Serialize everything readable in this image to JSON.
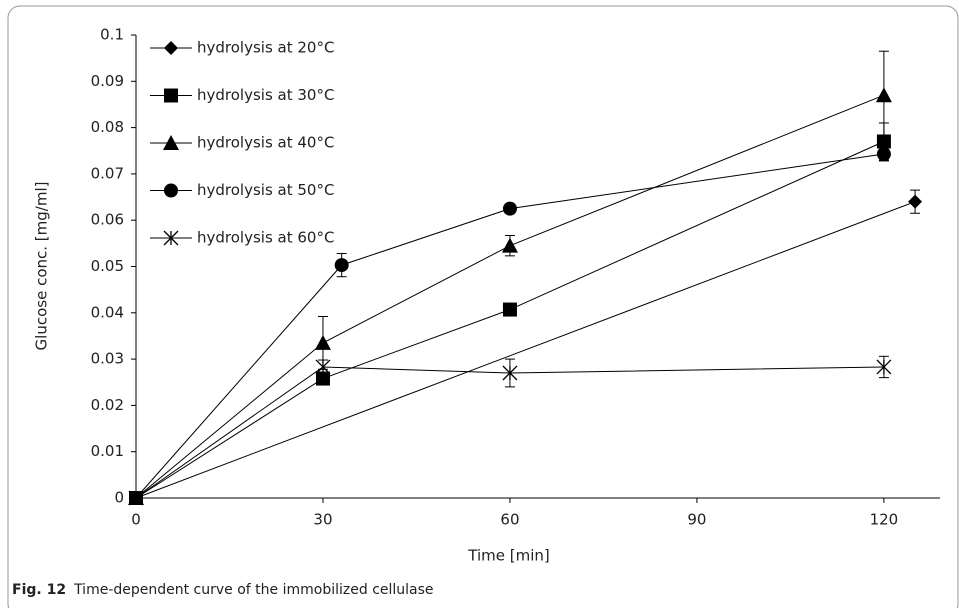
{
  "chart_data": {
    "type": "scatter-line",
    "x_label": "Time [min]",
    "y_label": "Glucose conc. [mg/ml]",
    "xlim": [
      0,
      129
    ],
    "ylim": [
      0,
      0.1
    ],
    "xticks": [
      0,
      30,
      60,
      90,
      120
    ],
    "yticks": [
      0,
      0.01,
      0.02,
      0.03,
      0.04,
      0.05,
      0.06,
      0.07,
      0.08,
      0.09,
      0.1
    ],
    "grid": false,
    "legend": "upper-left",
    "series": [
      {
        "name": "hydrolysis at 20°C",
        "color": "#000000",
        "marker": "diamond",
        "x": [
          0,
          125
        ],
        "values": [
          0,
          0.064
        ],
        "errors": [
          0,
          0.0025
        ]
      },
      {
        "name": "hydrolysis at 30°C",
        "color": "#000000",
        "marker": "square",
        "x": [
          0,
          30,
          60,
          120
        ],
        "values": [
          0,
          0.0258,
          0.0407,
          0.077
        ],
        "errors": [
          0,
          0,
          0,
          0.004
        ]
      },
      {
        "name": "hydrolysis at 40°C",
        "color": "#000000",
        "marker": "triangle",
        "x": [
          0,
          30,
          60,
          120
        ],
        "values": [
          0,
          0.0335,
          0.0545,
          0.087
        ],
        "errors": [
          0,
          0.0057,
          0.0022,
          0.0095
        ]
      },
      {
        "name": "hydrolysis at 50°C",
        "color": "#000000",
        "marker": "circle",
        "x": [
          0,
          33,
          60,
          120
        ],
        "values": [
          0,
          0.0503,
          0.0625,
          0.0743
        ],
        "errors": [
          0,
          0.0025,
          0.001,
          0.0015
        ]
      },
      {
        "name": "hydrolysis at 60°C",
        "color": "#000000",
        "marker": "star",
        "x": [
          0,
          30,
          60,
          120
        ],
        "values": [
          0,
          0.0283,
          0.027,
          0.0283
        ],
        "errors": [
          0,
          0.0015,
          0.003,
          0.0023
        ]
      }
    ]
  },
  "caption": {
    "label": "Fig. 12",
    "text": "Time-dependent curve of the immobilized cellulase"
  }
}
